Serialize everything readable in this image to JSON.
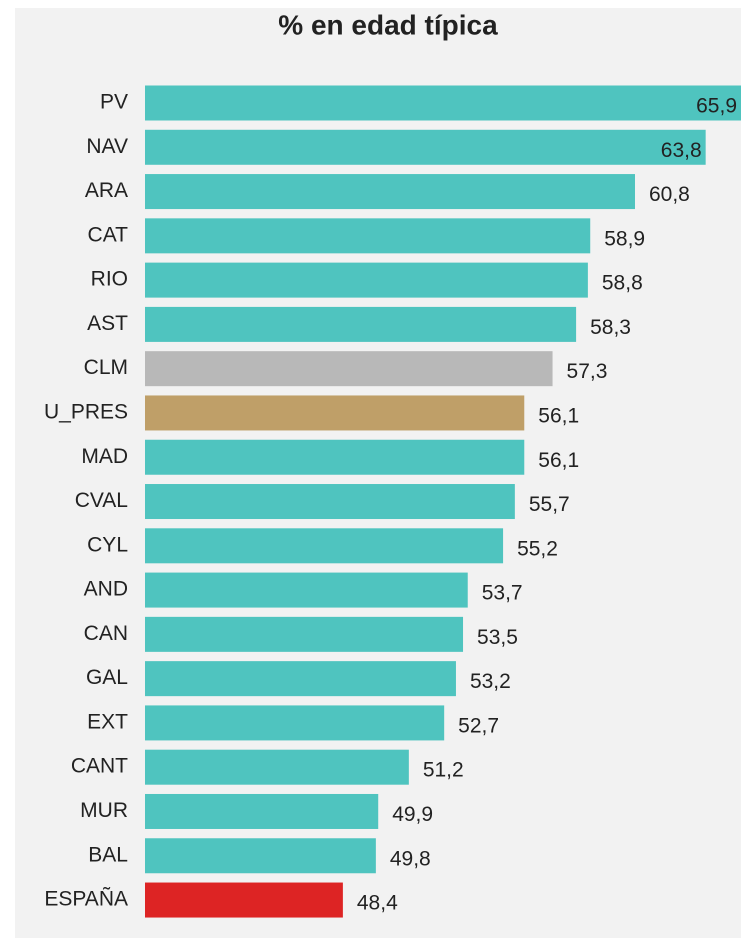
{
  "chart_data": {
    "type": "barh",
    "title": "% en edad típica",
    "categories": [
      "PV",
      "NAV",
      "ARA",
      "CAT",
      "RIO",
      "AST",
      "CLM",
      "U_PRES",
      "MAD",
      "CVAL",
      "CYL",
      "AND",
      "CAN",
      "GAL",
      "EXT",
      "CANT",
      "MUR",
      "BAL",
      "ESPAÑA"
    ],
    "values": [
      65.9,
      63.8,
      60.8,
      58.9,
      58.8,
      58.3,
      57.3,
      56.1,
      56.1,
      55.7,
      55.2,
      53.7,
      53.5,
      53.2,
      52.7,
      51.2,
      49.9,
      49.8,
      48.4
    ],
    "value_labels": [
      "65,9",
      "63,8",
      "60,8",
      "58,9",
      "58,8",
      "58,3",
      "57,3",
      "56,1",
      "56,1",
      "55,7",
      "55,2",
      "53,7",
      "53,5",
      "53,2",
      "52,7",
      "51,2",
      "49,9",
      "49,8",
      "48,4"
    ],
    "colors": [
      "#4fc4bf",
      "#4fc4bf",
      "#4fc4bf",
      "#4fc4bf",
      "#4fc4bf",
      "#4fc4bf",
      "#b8b8b8",
      "#bf9f68",
      "#4fc4bf",
      "#4fc4bf",
      "#4fc4bf",
      "#4fc4bf",
      "#4fc4bf",
      "#4fc4bf",
      "#4fc4bf",
      "#4fc4bf",
      "#4fc4bf",
      "#4fc4bf",
      "#dd2424"
    ],
    "xlim": [
      40,
      65.3
    ]
  }
}
